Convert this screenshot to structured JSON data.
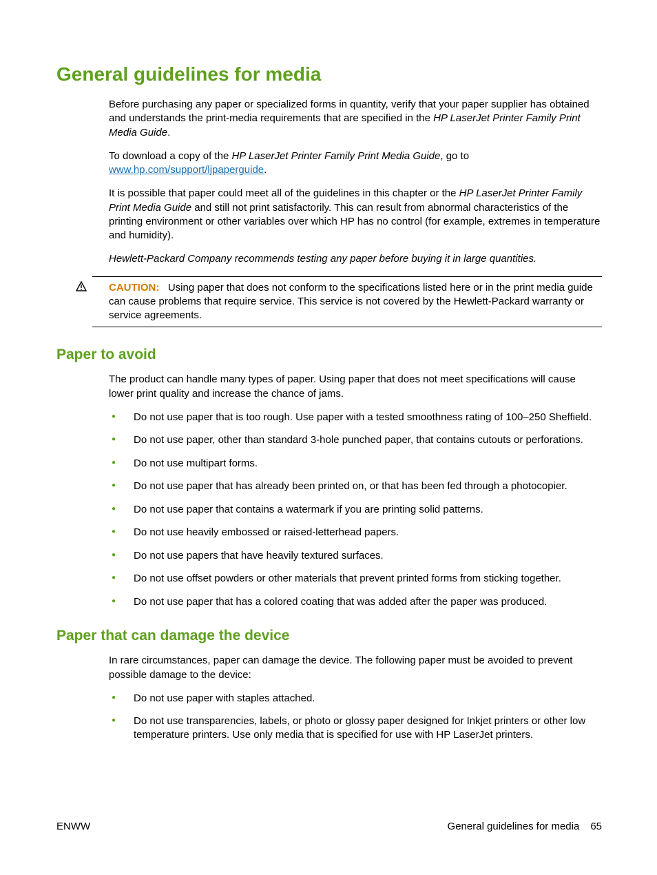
{
  "colors": {
    "heading_green": "#5fa01f",
    "caution_orange": "#d17a00",
    "link_blue": "#1a6fb0",
    "bullet_green": "#5fa01f",
    "text": "#000000",
    "rule": "#000000"
  },
  "h1": "General guidelines for media",
  "para1_a": "Before purchasing any paper or specialized forms in quantity, verify that your paper supplier has obtained and understands the print-media requirements that are specified in the ",
  "para1_italic": "HP LaserJet Printer Family Print Media Guide",
  "para1_b": ".",
  "para2_a": "To download a copy of the ",
  "para2_italic": "HP LaserJet Printer Family Print Media Guide",
  "para2_b": ", go to ",
  "para2_link": "www.hp.com/support/ljpaperguide",
  "para2_c": ".",
  "para3_a": "It is possible that paper could meet all of the guidelines in this chapter or the ",
  "para3_italic": "HP LaserJet Printer Family Print Media Guide",
  "para3_b": " and still not print satisfactorily. This can result from abnormal characteristics of the printing environment or other variables over which HP has no control (for example, extremes in temperature and humidity).",
  "para4_italic": "Hewlett-Packard Company recommends testing any paper before buying it in large quantities.",
  "caution_label": "CAUTION:",
  "caution_text": "Using paper that does not conform to the specifications listed here or in the print media guide can cause problems that require service. This service is not covered by the Hewlett-Packard warranty or service agreements.",
  "h2_avoid": "Paper to avoid",
  "avoid_intro": "The product can handle many types of paper. Using paper that does not meet specifications will cause lower print quality and increase the chance of jams.",
  "avoid_items": [
    "Do not use paper that is too rough. Use paper with a tested smoothness rating of 100–250 Sheffield.",
    "Do not use paper, other than standard 3-hole punched paper, that contains cutouts or perforations.",
    "Do not use multipart forms.",
    "Do not use paper that has already been printed on, or that has been fed through a photocopier.",
    "Do not use paper that contains a watermark if you are printing solid patterns.",
    "Do not use heavily embossed or raised-letterhead papers.",
    "Do not use papers that have heavily textured surfaces.",
    "Do not use offset powders or other materials that prevent printed forms from sticking together.",
    "Do not use paper that has a colored coating that was added after the paper was produced."
  ],
  "h2_damage": "Paper that can damage the device",
  "damage_intro": "In rare circumstances, paper can damage the device. The following paper must be avoided to prevent possible damage to the device:",
  "damage_items": [
    "Do not use paper with staples attached.",
    "Do not use transparencies, labels, or photo or glossy paper designed for Inkjet printers or other low temperature printers. Use only media that is specified for use with HP LaserJet printers."
  ],
  "footer_left": "ENWW",
  "footer_title": "General guidelines for media",
  "footer_page": "65"
}
